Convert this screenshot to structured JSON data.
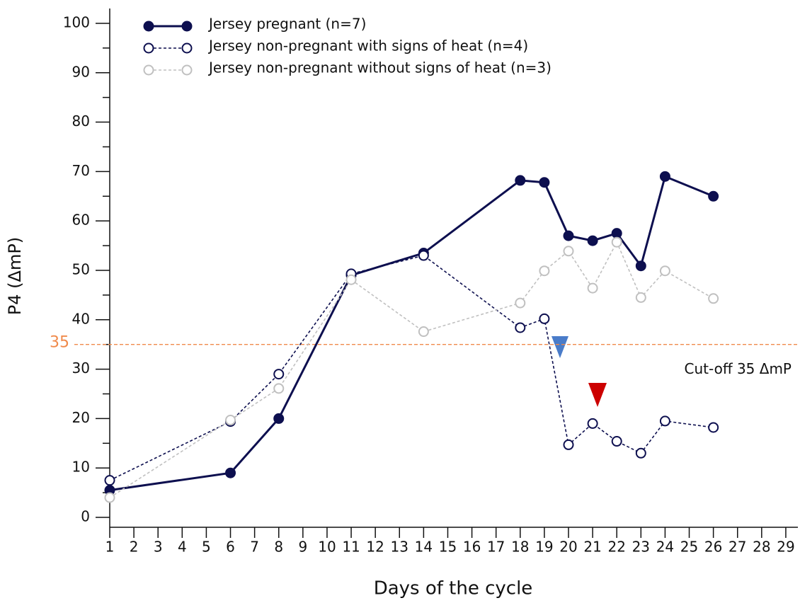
{
  "chart_data": {
    "type": "line",
    "xlabel": "Days of the cycle",
    "ylabel": "P4 (ΔmP)",
    "xlim": [
      1,
      29.5
    ],
    "xticks": [
      1,
      2,
      3,
      4,
      5,
      6,
      7,
      8,
      9,
      10,
      11,
      12,
      13,
      14,
      15,
      16,
      17,
      18,
      19,
      20,
      21,
      22,
      23,
      24,
      25,
      26,
      27,
      28,
      29
    ],
    "ylim": [
      -2,
      103
    ],
    "yticks": [
      0,
      10,
      20,
      30,
      40,
      50,
      60,
      70,
      80,
      90,
      100
    ],
    "yminorticks": [
      5,
      15,
      25,
      35,
      45,
      55,
      65,
      75,
      85,
      95
    ],
    "threshold": {
      "value": 35,
      "label": "35",
      "text": "Cut-off 35 ΔmP",
      "color": "#f08a4b"
    },
    "series": [
      {
        "name": "Jersey pregnant (n=7)",
        "color": "#0d0f4f",
        "style": "solid",
        "marker": "filled",
        "x": [
          1,
          6,
          8,
          11,
          14,
          18,
          19,
          20,
          21,
          22,
          23,
          24,
          26
        ],
        "values": [
          5.5,
          9,
          20,
          49,
          53.5,
          68.2,
          67.8,
          57,
          56,
          57.5,
          50.9,
          69,
          65
        ]
      },
      {
        "name": "Jersey non-pregnant with signs of heat (n=4)",
        "color": "#0d0f4f",
        "style": "dashed",
        "marker": "open",
        "x": [
          1,
          6,
          8,
          11,
          14,
          18,
          19,
          20,
          21,
          22,
          23,
          24,
          26
        ],
        "values": [
          7.5,
          19.4,
          29,
          49.3,
          53,
          38.4,
          40.2,
          14.7,
          19,
          15.4,
          13,
          19.5,
          18.2
        ]
      },
      {
        "name": "Jersey non-pregnant without signs of heat (n=3)",
        "color": "#c0c0c0",
        "style": "dashed",
        "marker": "open",
        "x": [
          1,
          6,
          8,
          11,
          14,
          18,
          19,
          20,
          21,
          22,
          23,
          24,
          26
        ],
        "values": [
          4,
          19.7,
          26.1,
          48.1,
          37.6,
          43.4,
          49.9,
          53.9,
          46.4,
          55.7,
          44.5,
          49.9,
          44.3
        ]
      }
    ]
  }
}
